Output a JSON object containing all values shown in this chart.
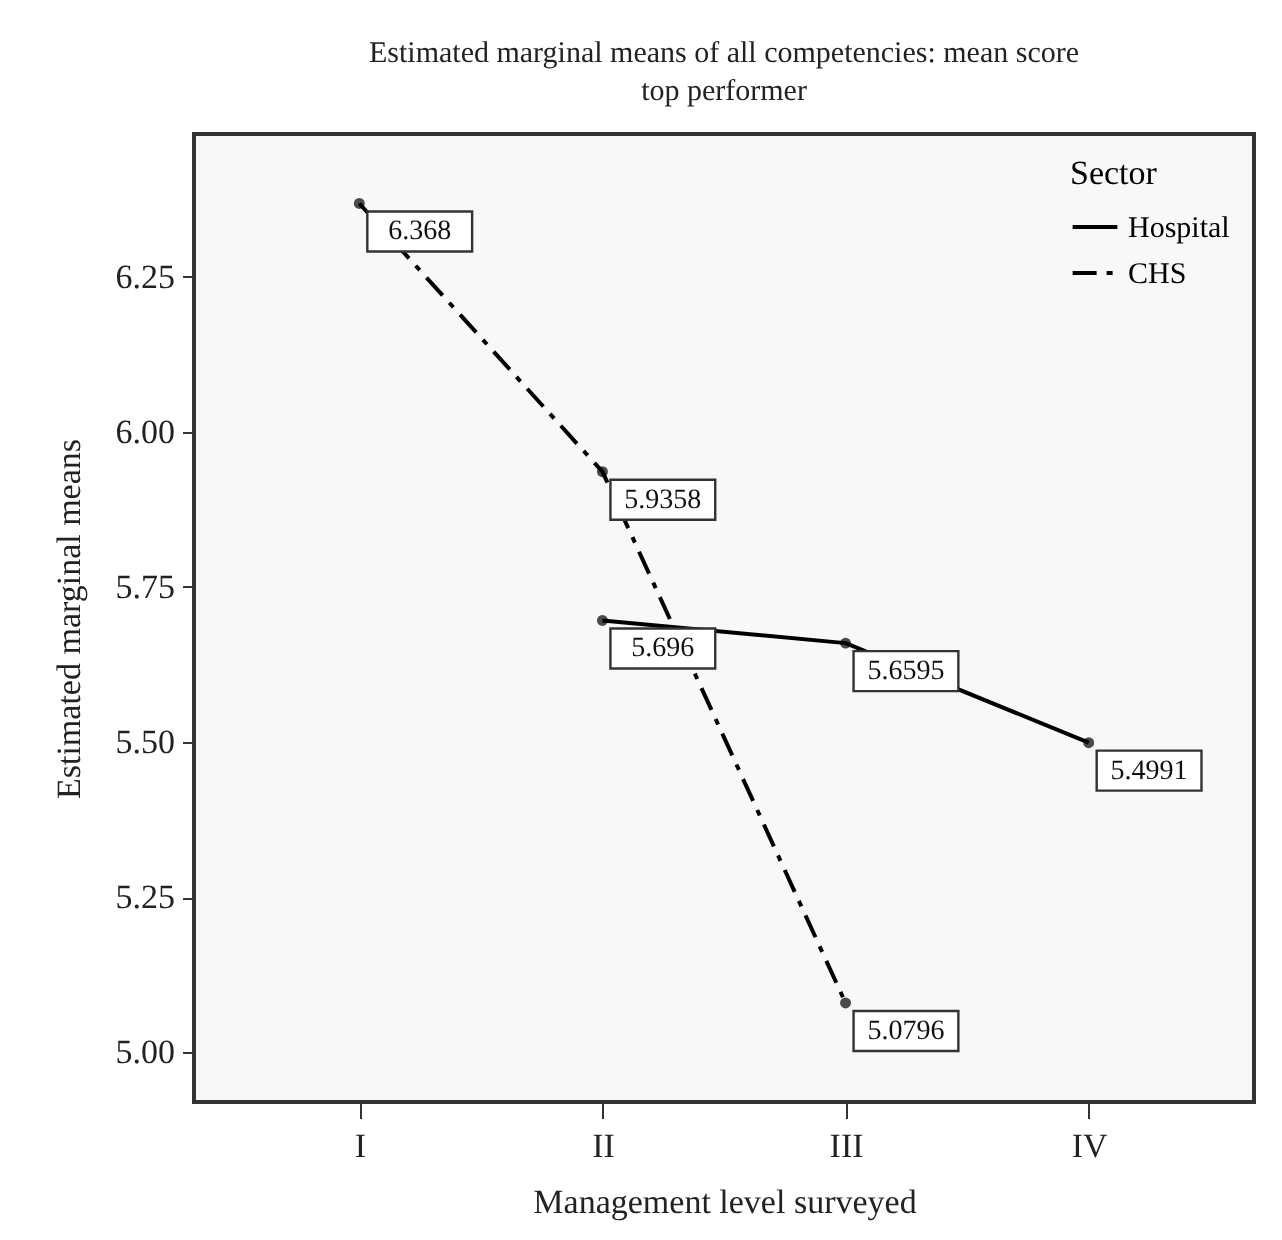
{
  "chart_data": {
    "type": "line",
    "title": "Estimated marginal means of all competencies: mean score top performer",
    "xlabel": "Management level surveyed",
    "ylabel": "Estimated marginal means",
    "legend_title": "Sector",
    "categories": [
      "I",
      "II",
      "III",
      "IV"
    ],
    "series": [
      {
        "name": "Hospital",
        "color": "#000000",
        "line_style": "solid",
        "values": [
          null,
          5.696,
          5.6595,
          5.4991
        ]
      },
      {
        "name": "CHS",
        "color": "#000000",
        "line_style": "dashed",
        "values": [
          6.368,
          5.9358,
          5.0796,
          null
        ]
      }
    ],
    "ylim": [
      4.92,
      6.48
    ],
    "yticks": [
      {
        "value": 5,
        "label": "5.00"
      },
      5.25,
      {
        "value": 5.5,
        "label": "5.50"
      },
      5.75,
      {
        "value": 6,
        "label": "6.00"
      },
      6.25
    ],
    "grid": false,
    "legend": "top right",
    "marker": "circle",
    "data_labels": true
  }
}
